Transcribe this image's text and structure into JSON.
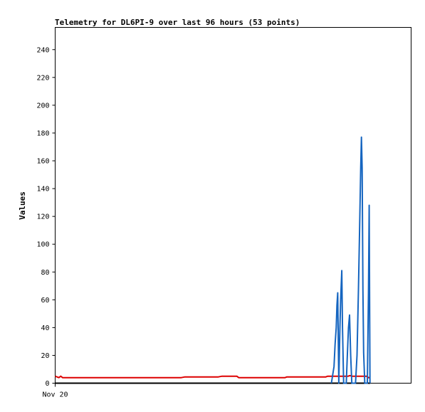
{
  "chart_data": {
    "type": "line",
    "title": "Telemetry for DL6PI-9 over last 96 hours (53 points)",
    "xlabel": "",
    "ylabel": "Values",
    "x_tick_labels": [
      "Nov 20"
    ],
    "xlim": [
      0,
      96
    ],
    "ylim": [
      0,
      256
    ],
    "y_ticks": [
      0,
      20,
      40,
      60,
      80,
      100,
      120,
      140,
      160,
      180,
      200,
      220,
      240
    ],
    "grid": false,
    "series": [
      {
        "color": "#000000",
        "points": [
          [
            0,
            0
          ],
          [
            85,
            0
          ]
        ]
      },
      {
        "color": "#dd0000",
        "points": [
          [
            0,
            5
          ],
          [
            0.5,
            4.5
          ],
          [
            1,
            4
          ],
          [
            1.5,
            5
          ],
          [
            2,
            4
          ],
          [
            4,
            4
          ],
          [
            34,
            4
          ],
          [
            35,
            4.5
          ],
          [
            44,
            4.5
          ],
          [
            45,
            5
          ],
          [
            49,
            5
          ],
          [
            49.5,
            4
          ],
          [
            62,
            4
          ],
          [
            62.5,
            4.5
          ],
          [
            73,
            4.5
          ],
          [
            73.5,
            5
          ],
          [
            79,
            5
          ],
          [
            79.5,
            5.5
          ],
          [
            80,
            5
          ],
          [
            84,
            5
          ],
          [
            84.5,
            4
          ],
          [
            85,
            4
          ]
        ]
      },
      {
        "color": "#1565c0",
        "points": [
          [
            74.5,
            0
          ],
          [
            75.2,
            12
          ],
          [
            75.5,
            28
          ],
          [
            75.8,
            40
          ],
          [
            76.0,
            56
          ],
          [
            76.2,
            65
          ],
          [
            76.5,
            0
          ],
          [
            76.8,
            40
          ],
          [
            77.0,
            60
          ],
          [
            77.3,
            81
          ],
          [
            77.5,
            40
          ],
          [
            77.8,
            0
          ],
          [
            78.5,
            0
          ],
          [
            78.8,
            20
          ],
          [
            79.1,
            40
          ],
          [
            79.4,
            49
          ],
          [
            79.7,
            20
          ],
          [
            80.0,
            0
          ],
          [
            81.0,
            0
          ],
          [
            81.4,
            20
          ],
          [
            81.8,
            67
          ],
          [
            82.1,
            110
          ],
          [
            82.4,
            155
          ],
          [
            82.6,
            177
          ],
          [
            82.8,
            155
          ],
          [
            83.0,
            67
          ],
          [
            83.2,
            22
          ],
          [
            83.5,
            0
          ],
          [
            84.2,
            0
          ],
          [
            84.5,
            65
          ],
          [
            84.7,
            128
          ],
          [
            84.9,
            0
          ]
        ]
      }
    ]
  }
}
